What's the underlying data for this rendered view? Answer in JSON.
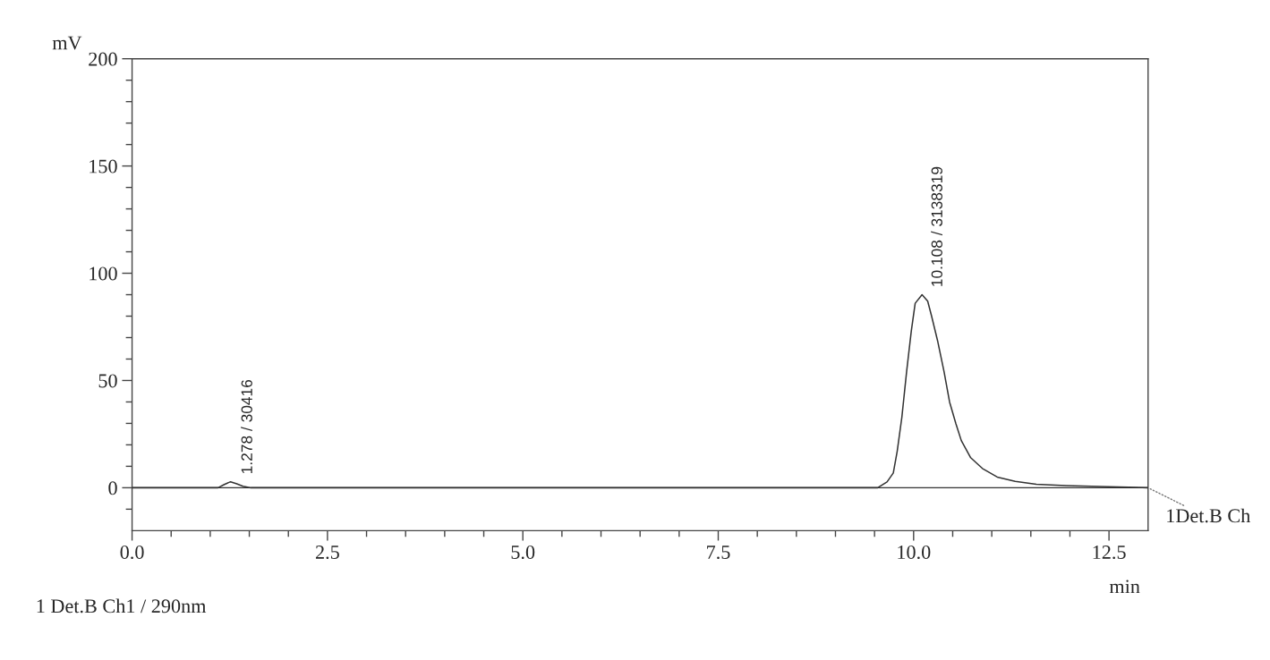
{
  "chart_data": {
    "type": "line",
    "xlabel": "min",
    "ylabel": "mV",
    "xlim": [
      0,
      13
    ],
    "ylim": [
      -20,
      200
    ],
    "xticks": [
      {
        "value": 0,
        "label": "0.0"
      },
      {
        "value": 0.5,
        "label": null
      },
      {
        "value": 1,
        "label": null
      },
      {
        "value": 1.5,
        "label": null
      },
      {
        "value": 2,
        "label": null
      },
      2.5,
      {
        "value": 3,
        "label": null
      },
      {
        "value": 3.5,
        "label": null
      },
      {
        "value": 4,
        "label": null
      },
      {
        "value": 4.5,
        "label": null
      },
      {
        "value": 5,
        "label": "5.0"
      },
      {
        "value": 5.5,
        "label": null
      },
      {
        "value": 6,
        "label": null
      },
      {
        "value": 6.5,
        "label": null
      },
      {
        "value": 7,
        "label": null
      },
      7.5,
      {
        "value": 8,
        "label": null
      },
      {
        "value": 8.5,
        "label": null
      },
      {
        "value": 9,
        "label": null
      },
      {
        "value": 9.5,
        "label": null
      },
      {
        "value": 10,
        "label": "10.0"
      },
      {
        "value": 10.5,
        "label": null
      },
      {
        "value": 11,
        "label": null
      },
      {
        "value": 11.5,
        "label": null
      },
      {
        "value": 12,
        "label": null
      },
      12.5
    ],
    "yticks": [
      {
        "value": -10,
        "label": null
      },
      0,
      {
        "value": 10,
        "label": null
      },
      {
        "value": 20,
        "label": null
      },
      {
        "value": 30,
        "label": null
      },
      {
        "value": 40,
        "label": null
      },
      50,
      {
        "value": 60,
        "label": null
      },
      {
        "value": 70,
        "label": null
      },
      {
        "value": 80,
        "label": null
      },
      {
        "value": 90,
        "label": null
      },
      100,
      {
        "value": 110,
        "label": null
      },
      {
        "value": 120,
        "label": null
      },
      {
        "value": 130,
        "label": null
      },
      {
        "value": 140,
        "label": null
      },
      150,
      {
        "value": 160,
        "label": null
      },
      {
        "value": 170,
        "label": null
      },
      {
        "value": 180,
        "label": null
      },
      {
        "value": 190,
        "label": null
      },
      200
    ],
    "series": [
      {
        "name": "1Det.B Ch",
        "color": "#333333",
        "x": [
          0,
          1.0,
          1.1,
          1.18,
          1.26,
          1.34,
          1.42,
          1.52,
          3.0,
          6.0,
          9.0,
          9.54,
          9.66,
          9.74,
          9.79,
          9.85,
          9.91,
          9.97,
          10.02,
          10.108,
          10.18,
          10.23,
          10.31,
          10.39,
          10.46,
          10.54,
          10.61,
          10.73,
          10.88,
          11.07,
          11.3,
          11.57,
          11.95,
          12.5,
          13.0
        ],
        "values": [
          0,
          0,
          0,
          1.5,
          2.8,
          1.8,
          0.7,
          0,
          0,
          0,
          0,
          0,
          2.7,
          6.9,
          17,
          33,
          54,
          73,
          86,
          90,
          87,
          80,
          68,
          54,
          40,
          30,
          22,
          14,
          9,
          5,
          3,
          1.6,
          1,
          0.5,
          0
        ]
      }
    ],
    "ref_lines": [
      {
        "axis": "y",
        "value": 0,
        "color": "#333333"
      }
    ],
    "annotations": [
      {
        "text": "1.278 / 30416",
        "x": 1.278,
        "y": 2.8
      },
      {
        "text": "10.108 / 3138319",
        "x": 10.108,
        "y": 90
      },
      "1 Det.B Ch1 / 290nm"
    ]
  }
}
